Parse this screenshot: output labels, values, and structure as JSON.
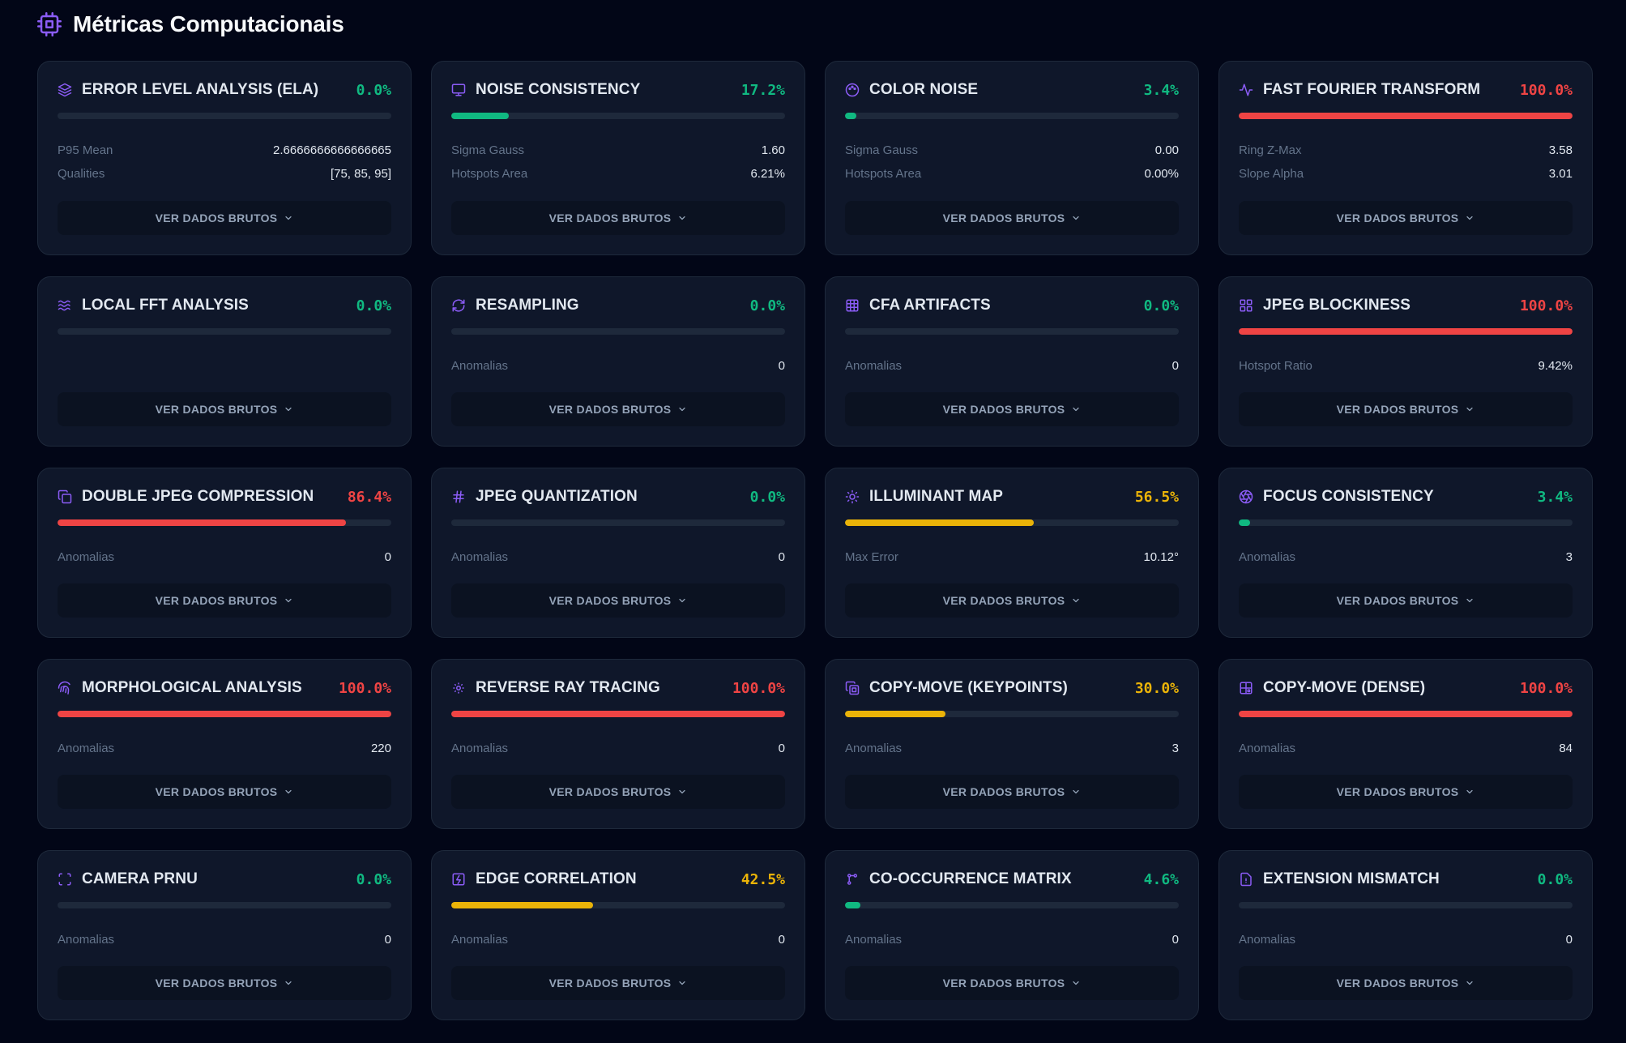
{
  "header": {
    "title": "Métricas Computacionais",
    "icon": "cpu-icon"
  },
  "raw_button_label": "VER DADOS BRUTOS",
  "colors": {
    "green": "#10b981",
    "red": "#ef4444",
    "yellow": "#eab308",
    "accent": "#8b5cf6"
  },
  "cards": [
    {
      "title": "ERROR LEVEL ANALYSIS (ELA)",
      "icon": "layers-icon",
      "pct": "0.0%",
      "value": 0.0,
      "status": "green",
      "stats": [
        {
          "label": "P95 Mean",
          "value": "2.6666666666666665"
        },
        {
          "label": "Qualities",
          "value": "[75, 85, 95]"
        }
      ]
    },
    {
      "title": "NOISE CONSISTENCY",
      "icon": "monitor-icon",
      "pct": "17.2%",
      "value": 17.2,
      "status": "green",
      "stats": [
        {
          "label": "Sigma Gauss",
          "value": "1.60"
        },
        {
          "label": "Hotspots Area",
          "value": "6.21%"
        }
      ]
    },
    {
      "title": "COLOR NOISE",
      "icon": "palette-icon",
      "pct": "3.4%",
      "value": 3.4,
      "status": "green",
      "stats": [
        {
          "label": "Sigma Gauss",
          "value": "0.00"
        },
        {
          "label": "Hotspots Area",
          "value": "0.00%"
        }
      ]
    },
    {
      "title": "FAST FOURIER TRANSFORM",
      "icon": "activity-icon",
      "pct": "100.0%",
      "value": 100.0,
      "status": "red",
      "stats": [
        {
          "label": "Ring Z-Max",
          "value": "3.58"
        },
        {
          "label": "Slope Alpha",
          "value": "3.01"
        }
      ]
    },
    {
      "title": "LOCAL FFT ANALYSIS",
      "icon": "waves-icon",
      "pct": "0.0%",
      "value": 0.0,
      "status": "green",
      "stats": []
    },
    {
      "title": "RESAMPLING",
      "icon": "refresh-icon",
      "pct": "0.0%",
      "value": 0.0,
      "status": "green",
      "stats": [
        {
          "label": "Anomalias",
          "value": "0"
        }
      ]
    },
    {
      "title": "CFA ARTIFACTS",
      "icon": "grid-icon",
      "pct": "0.0%",
      "value": 0.0,
      "status": "green",
      "stats": [
        {
          "label": "Anomalias",
          "value": "0"
        }
      ]
    },
    {
      "title": "JPEG BLOCKINESS",
      "icon": "blocks-icon",
      "pct": "100.0%",
      "value": 100.0,
      "status": "red",
      "stats": [
        {
          "label": "Hotspot Ratio",
          "value": "9.42%"
        }
      ]
    },
    {
      "title": "DOUBLE JPEG COMPRESSION",
      "icon": "copy-icon",
      "pct": "86.4%",
      "value": 86.4,
      "status": "red",
      "stats": [
        {
          "label": "Anomalias",
          "value": "0"
        }
      ]
    },
    {
      "title": "JPEG QUANTIZATION",
      "icon": "hash-icon",
      "pct": "0.0%",
      "value": 0.0,
      "status": "green",
      "stats": [
        {
          "label": "Anomalias",
          "value": "0"
        }
      ]
    },
    {
      "title": "ILLUMINANT MAP",
      "icon": "sun-icon",
      "pct": "56.5%",
      "value": 56.5,
      "status": "yellow",
      "stats": [
        {
          "label": "Max Error",
          "value": "10.12°"
        }
      ]
    },
    {
      "title": "FOCUS CONSISTENCY",
      "icon": "aperture-icon",
      "pct": "3.4%",
      "value": 3.4,
      "status": "green",
      "stats": [
        {
          "label": "Anomalias",
          "value": "3"
        }
      ]
    },
    {
      "title": "MORPHOLOGICAL ANALYSIS",
      "icon": "fingerprint-icon",
      "pct": "100.0%",
      "value": 100.0,
      "status": "red",
      "stats": [
        {
          "label": "Anomalias",
          "value": "220"
        }
      ]
    },
    {
      "title": "REVERSE RAY TRACING",
      "icon": "sun-small-icon",
      "pct": "100.0%",
      "value": 100.0,
      "status": "red",
      "stats": [
        {
          "label": "Anomalias",
          "value": "0"
        }
      ]
    },
    {
      "title": "COPY-MOVE (KEYPOINTS)",
      "icon": "copy-keypoint-icon",
      "pct": "30.0%",
      "value": 30.0,
      "status": "yellow",
      "stats": [
        {
          "label": "Anomalias",
          "value": "3"
        }
      ]
    },
    {
      "title": "COPY-MOVE (DENSE)",
      "icon": "layout-icon",
      "pct": "100.0%",
      "value": 100.0,
      "status": "red",
      "stats": [
        {
          "label": "Anomalias",
          "value": "84"
        }
      ]
    },
    {
      "title": "CAMERA PRNU",
      "icon": "scan-icon",
      "pct": "0.0%",
      "value": 0.0,
      "status": "green",
      "stats": [
        {
          "label": "Anomalias",
          "value": "0"
        }
      ]
    },
    {
      "title": "EDGE CORRELATION",
      "icon": "image-icon",
      "pct": "42.5%",
      "value": 42.5,
      "status": "yellow",
      "stats": [
        {
          "label": "Anomalias",
          "value": "0"
        }
      ]
    },
    {
      "title": "CO-OCCURRENCE MATRIX",
      "icon": "nodes-icon",
      "pct": "4.6%",
      "value": 4.6,
      "status": "green",
      "stats": [
        {
          "label": "Anomalias",
          "value": "0"
        }
      ]
    },
    {
      "title": "EXTENSION MISMATCH",
      "icon": "file-icon",
      "pct": "0.0%",
      "value": 0.0,
      "status": "green",
      "stats": [
        {
          "label": "Anomalias",
          "value": "0"
        }
      ]
    }
  ]
}
